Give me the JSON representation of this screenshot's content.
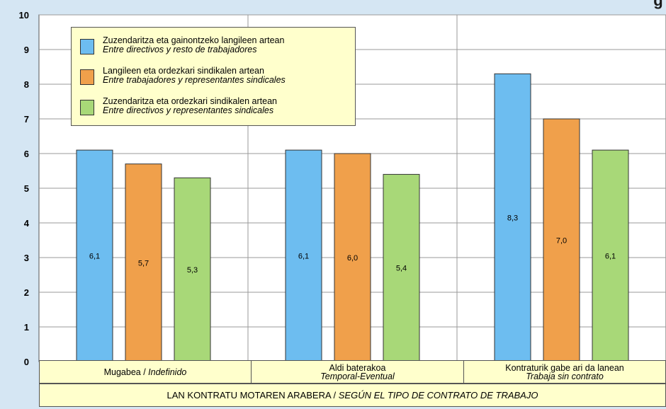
{
  "top_text": "g      y",
  "chart_data": {
    "type": "bar",
    "ylim": [
      0,
      10
    ],
    "yticks": [
      "0",
      "1",
      "2",
      "3",
      "4",
      "5",
      "6",
      "7",
      "8",
      "9",
      "10"
    ],
    "grid": true,
    "legend_position": "top-left",
    "categories": [
      {
        "eu": "Mugabea",
        "sep": " / ",
        "es": "Indefinido"
      },
      {
        "eu": "Aldi baterakoa",
        "sep": "",
        "es": "Temporal-Eventual"
      },
      {
        "eu": "Kontraturik gabe ari da lanean",
        "sep": "",
        "es": "Trabaja sin contrato"
      }
    ],
    "series": [
      {
        "name": "Zuzendaritza eta gainontzeko langileen artean",
        "name_es": "Entre directivos y resto de trabajadores",
        "color": "#6dbdf0",
        "values": [
          6.1,
          6.1,
          8.3
        ],
        "labels": [
          "6,1",
          "6,1",
          "8,3"
        ]
      },
      {
        "name": "Langileen eta ordezkari sindikalen artean",
        "name_es": "Entre trabajadores y representantes sindicales",
        "color": "#f0a04b",
        "values": [
          5.7,
          6.0,
          7.0
        ],
        "labels": [
          "5,7",
          "6,0",
          "7,0"
        ]
      },
      {
        "name": "Zuzendaritza eta ordezkari sindikalen artean",
        "name_es": "Entre directivos y representantes sindicales",
        "color": "#a8d878",
        "values": [
          5.3,
          5.4,
          6.1
        ],
        "labels": [
          "5,3",
          "5,4",
          "6,1"
        ]
      }
    ],
    "xlabel": {
      "eu": "LAN KONTRATU MOTAREN ARABERA / ",
      "es": "SEGÚN EL TIPO DE CONTRATO DE TRABAJO"
    }
  }
}
